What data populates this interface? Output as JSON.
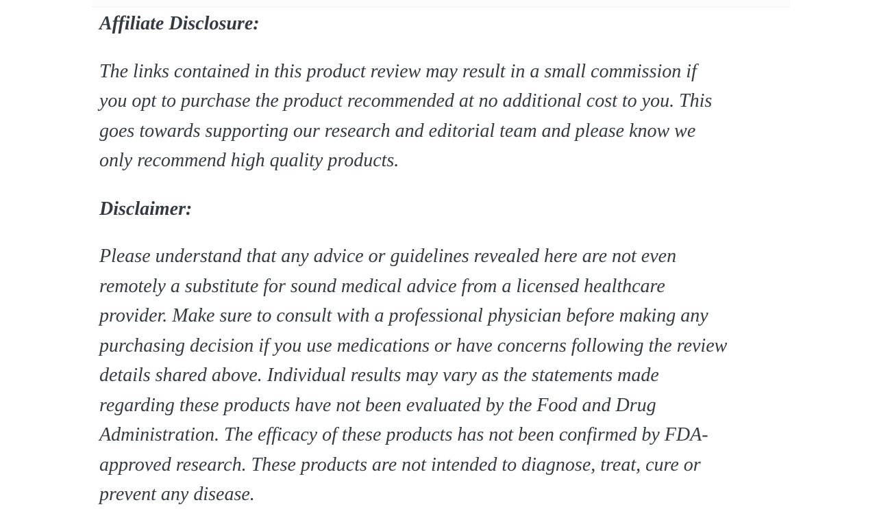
{
  "page": {
    "background_color": "#ffffff",
    "text_color": "#333a41",
    "divider_color": "#f4f4f5"
  },
  "article": {
    "sections": [
      {
        "heading": "Affiliate Disclosure:",
        "body": [
          "The links contained in this product review may result in a small commission if",
          "you opt to purchase the product recommended at no additional cost to you. This",
          "goes towards supporting our research and editorial team and please know we",
          "only recommend high quality products."
        ]
      },
      {
        "heading": "Disclaimer:",
        "body": [
          "Please understand that any advice or guidelines revealed here are not even",
          "remotely a substitute for sound medical advice from a licensed healthcare",
          "provider. Make sure to consult with a professional physician before making any",
          "purchasing decision if you use medications or have concerns following the review",
          "details shared above. Individual results may vary as the statements made",
          "regarding these products have not been evaluated by the Food and Drug",
          "Administration. The efficacy of these products has not been confirmed by FDA-",
          "approved research. These products are not intended to diagnose, treat, cure or",
          "prevent any disease."
        ]
      }
    ]
  }
}
